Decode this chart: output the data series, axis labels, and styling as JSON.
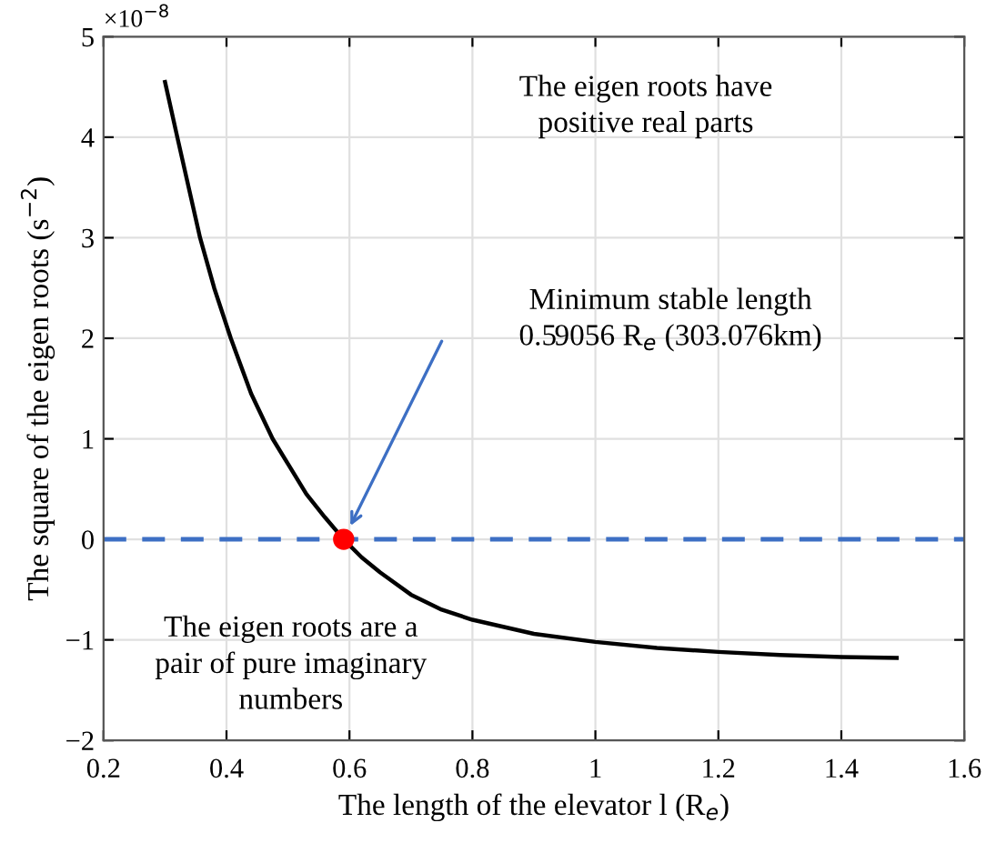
{
  "chart_data": {
    "type": "line",
    "xlabel": "The length of the elevator l (R$_{e}$)",
    "ylabel": "The square of the eigen roots (s$^{−2}$)",
    "series": [
      {
        "color": "#000000",
        "marker": "none",
        "x": [
          0.3,
          0.32,
          0.357,
          0.38,
          0.407,
          0.44,
          0.475,
          0.5,
          0.53,
          0.56,
          0.59056,
          0.62,
          0.65,
          0.7,
          0.75,
          0.8,
          0.9,
          1.0,
          1.1,
          1.2,
          1.3,
          1.4,
          1.49
        ],
        "values": [
          4.55,
          4.0,
          3.0,
          2.5,
          2.0,
          1.45,
          1.0,
          0.75,
          0.45,
          0.22,
          0,
          -0.18,
          -0.33,
          -0.55,
          -0.7,
          -0.8,
          -0.94,
          -1.02,
          -1.08,
          -1.12,
          -1.15,
          -1.17,
          -1.18
        ]
      },
      {
        "type": "scatter",
        "color": "#ff0000",
        "marker": "circle",
        "x": [
          0.59056
        ],
        "values": [
          0
        ]
      }
    ],
    "ref_lines": [
      {
        "axis": "y",
        "value": 0,
        "color": "#3d6fc4",
        "line_style": "dashed"
      }
    ],
    "annotations": [
      "×10$^{−8}$",
      "The eigen roots have\npositive real parts",
      "The eigen roots are a\npair of pure imaginary\nnumbers",
      "Minimum stable length\n0.59056 R$_{e}$ (303.076km)"
    ],
    "xlim": [
      0.2,
      1.6
    ],
    "ylim": [
      -2,
      5
    ],
    "xticks": [
      0.2,
      0.4,
      0.6,
      0.8,
      1,
      1.2,
      1.4,
      1.6
    ],
    "yticks": [
      {
        "value": -2,
        "label": "−2"
      },
      {
        "value": -1,
        "label": "−1"
      },
      0,
      1,
      2,
      3,
      4,
      5
    ],
    "grid": true,
    "legend": false
  }
}
